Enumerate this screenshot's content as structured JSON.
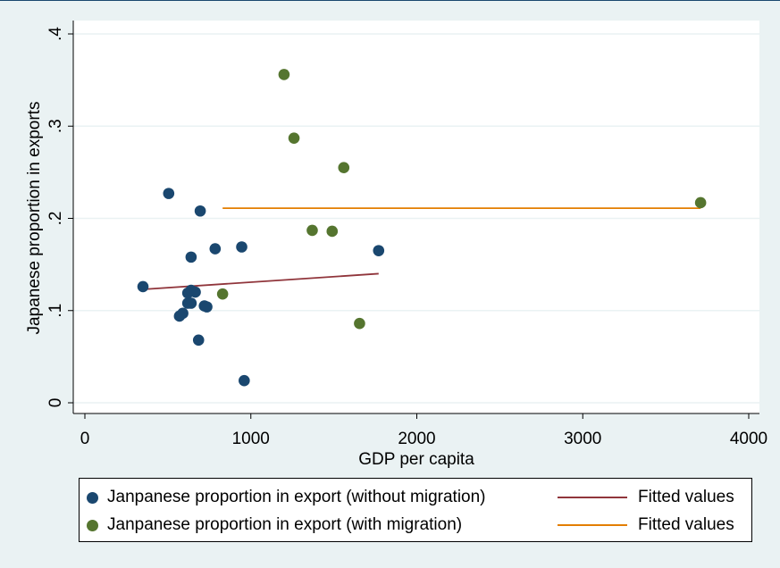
{
  "chart_data": {
    "type": "scatter",
    "xlabel": "GDP per capita",
    "ylabel": "Japanese proportion in exports",
    "xlim": [
      0,
      4000
    ],
    "ylim": [
      0,
      0.4
    ],
    "xticks": [
      0,
      1000,
      2000,
      3000,
      4000
    ],
    "xtick_labels": [
      "0",
      "1000",
      "2000",
      "3000",
      "4000"
    ],
    "yticks": [
      0,
      0.1,
      0.2,
      0.3,
      0.4
    ],
    "ytick_labels": [
      "0",
      ".1",
      ".2",
      ".3",
      ".4"
    ],
    "grid": "horizontal",
    "legend_position": "bottom",
    "series": [
      {
        "name": "Janpanese proportion in export (without migration)",
        "kind": "scatter",
        "color": "#1a476f",
        "points": [
          [
            350,
            0.126
          ],
          [
            505,
            0.227
          ],
          [
            695,
            0.208
          ],
          [
            640,
            0.158
          ],
          [
            785,
            0.167
          ],
          [
            945,
            0.169
          ],
          [
            1770,
            0.165
          ],
          [
            620,
            0.119
          ],
          [
            640,
            0.122
          ],
          [
            665,
            0.12
          ],
          [
            620,
            0.108
          ],
          [
            640,
            0.108
          ],
          [
            590,
            0.097
          ],
          [
            570,
            0.094
          ],
          [
            720,
            0.105
          ],
          [
            735,
            0.104
          ],
          [
            685,
            0.068
          ],
          [
            960,
            0.024
          ]
        ]
      },
      {
        "name": "Janpanese proportion in export (with migration)",
        "kind": "scatter",
        "color": "#55752f",
        "points": [
          [
            1200,
            0.356
          ],
          [
            1260,
            0.287
          ],
          [
            1560,
            0.255
          ],
          [
            3710,
            0.217
          ],
          [
            1370,
            0.187
          ],
          [
            1490,
            0.186
          ],
          [
            830,
            0.118
          ],
          [
            1655,
            0.086
          ]
        ]
      },
      {
        "name": "Fitted values",
        "kind": "line",
        "color": "#90353b",
        "points": [
          [
            350,
            0.123
          ],
          [
            1770,
            0.14
          ]
        ]
      },
      {
        "name": "Fitted values",
        "kind": "line",
        "color": "#e37e00",
        "points": [
          [
            830,
            0.211
          ],
          [
            3710,
            0.211
          ]
        ]
      }
    ]
  },
  "legend": {
    "entries": [
      {
        "label": "Janpanese proportion in export (without migration)",
        "color": "#1a476f"
      },
      {
        "label": "Janpanese proportion in export (with migration)",
        "color": "#55752f"
      },
      {
        "label": "Fitted values",
        "color": "#90353b"
      },
      {
        "label": "Fitted values",
        "color": "#e37e00"
      }
    ]
  }
}
